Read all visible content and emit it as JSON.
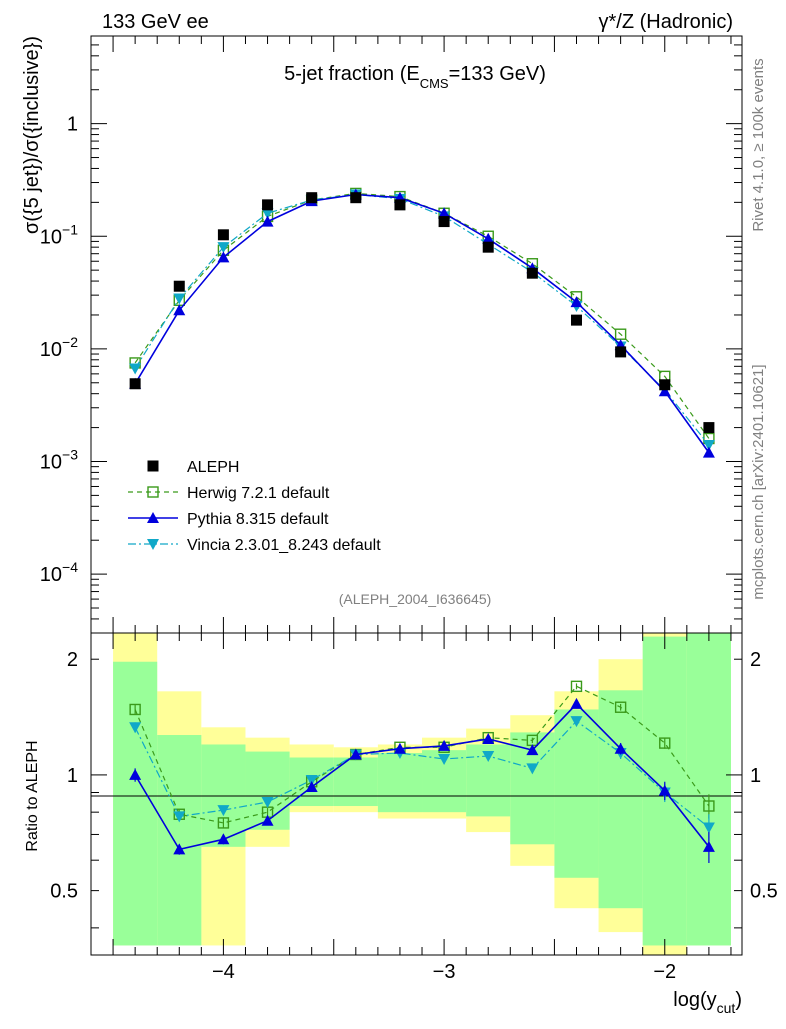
{
  "header": {
    "left": "133 GeV ee",
    "right": "γ*/Z (Hadronic)"
  },
  "side_labels": {
    "rivet": "Rivet 4.1.0, ≥ 100k events",
    "mcplots": "mcplots.cern.ch [arXiv:2401.10621]"
  },
  "chart_data": [
    {
      "type": "scatter",
      "panel": "main",
      "title_parts": {
        "prefix": "5-jet fraction (E",
        "sub": "CMS",
        "suffix": "=133 GeV)"
      },
      "ylabel": "σ({5 jet})/σ({inclusive})",
      "yscale": "log",
      "xlim": [
        -4.6,
        -1.65
      ],
      "ylim": [
        3e-05,
        6
      ],
      "ytick_labels": [
        {
          "value": 1,
          "base": "1",
          "exp": ""
        },
        {
          "value": 0.1,
          "base": "10",
          "exp": "−1"
        },
        {
          "value": 0.01,
          "base": "10",
          "exp": "−2"
        },
        {
          "value": 0.001,
          "base": "10",
          "exp": "−3"
        },
        {
          "value": 0.0001,
          "base": "10",
          "exp": "−4"
        }
      ],
      "watermark": "(ALEPH_2004_I636645)",
      "x": [
        -4.4,
        -4.2,
        -4.0,
        -3.8,
        -3.6,
        -3.4,
        -3.2,
        -3.0,
        -2.8,
        -2.6,
        -2.4,
        -2.2,
        -2.0,
        -1.8
      ],
      "series": [
        {
          "name": "ALEPH",
          "color": "#000000",
          "marker": "square-filled",
          "line": "none",
          "values": [
            0.0049,
            0.036,
            0.103,
            0.19,
            0.22,
            0.22,
            0.19,
            0.135,
            0.08,
            0.047,
            0.018,
            0.0094,
            0.0048,
            0.002
          ]
        },
        {
          "name": "Herwig 7.2.1 default",
          "color": "#3a9a1a",
          "marker": "square-open",
          "line": "dashed",
          "values": [
            0.0075,
            0.027,
            0.075,
            0.15,
            0.21,
            0.24,
            0.225,
            0.16,
            0.1,
            0.057,
            0.029,
            0.0135,
            0.0057,
            0.0016
          ]
        },
        {
          "name": "Pythia 8.315 default",
          "color": "#0000dd",
          "marker": "triangle-up-filled",
          "line": "solid",
          "values": [
            0.0049,
            0.022,
            0.065,
            0.135,
            0.205,
            0.235,
            0.22,
            0.16,
            0.095,
            0.052,
            0.026,
            0.0108,
            0.0042,
            0.0012
          ]
        },
        {
          "name": "Vincia 2.3.01_8.243 default",
          "color": "#10a8c8",
          "marker": "triangle-down-filled",
          "line": "dashdot",
          "values": [
            0.0067,
            0.028,
            0.08,
            0.16,
            0.21,
            0.235,
            0.215,
            0.15,
            0.085,
            0.048,
            0.024,
            0.0105,
            0.0043,
            0.0014
          ]
        }
      ]
    },
    {
      "type": "scatter",
      "panel": "ratio",
      "ylabel": "Ratio to ALEPH",
      "xlabel_parts": {
        "prefix": "log(y",
        "sub": "cut",
        "suffix": ")"
      },
      "ylim": [
        0.34,
        2.34
      ],
      "reference_line": 1,
      "ytick_labels": [
        {
          "value": 2,
          "text": "2"
        },
        {
          "value": 1,
          "text": "1"
        },
        {
          "value": 0.5,
          "text": "0.5"
        }
      ],
      "xtick_labels": [
        {
          "value": -4,
          "text": "−4"
        },
        {
          "value": -3,
          "text": "−3"
        },
        {
          "value": -2,
          "text": "−2"
        }
      ],
      "x": [
        -4.4,
        -4.2,
        -4.0,
        -3.8,
        -3.6,
        -3.4,
        -3.2,
        -3.0,
        -2.8,
        -2.6,
        -2.4,
        -2.2,
        -2.0,
        -1.8
      ],
      "bin_edges": [
        -4.5,
        -4.3,
        -4.1,
        -3.9,
        -3.7,
        -3.5,
        -3.3,
        -3.1,
        -2.9,
        -2.7,
        -2.5,
        -2.3,
        -2.1,
        -1.9,
        -1.7
      ],
      "uncertainty_bands": [
        {
          "name": "stat",
          "color": "#99ff99",
          "low": [
            0.36,
            0.36,
            0.65,
            0.72,
            0.83,
            0.83,
            0.8,
            0.8,
            0.78,
            0.66,
            0.54,
            0.45,
            0.36,
            0.36
          ],
          "high": [
            1.97,
            1.27,
            1.2,
            1.15,
            1.11,
            1.11,
            1.14,
            1.16,
            1.2,
            1.29,
            1.48,
            1.66,
            2.29,
            2.34
          ]
        },
        {
          "name": "total",
          "color": "#ffff99",
          "low": [
            0.36,
            0.36,
            0.36,
            0.65,
            0.8,
            0.8,
            0.77,
            0.77,
            0.71,
            0.58,
            0.45,
            0.39,
            0.34,
            0.36
          ],
          "high": [
            2.34,
            1.65,
            1.33,
            1.25,
            1.2,
            1.18,
            1.2,
            1.25,
            1.32,
            1.43,
            1.65,
            2.0,
            2.34,
            2.34
          ]
        }
      ],
      "series": [
        {
          "name": "Herwig 7.2.1 default",
          "color": "#3a9a1a",
          "marker": "square-open",
          "line": "dashed",
          "values": [
            1.48,
            0.79,
            0.75,
            0.8,
            0.96,
            1.13,
            1.18,
            1.18,
            1.25,
            1.23,
            1.7,
            1.5,
            1.21,
            0.83
          ],
          "errors": [
            0.04,
            0.02,
            0.02,
            0.02,
            0.01,
            0.01,
            0.01,
            0.01,
            0.02,
            0.02,
            0.03,
            0.03,
            0.04,
            0.06
          ]
        },
        {
          "name": "Pythia 8.315 default",
          "color": "#0000dd",
          "marker": "triangle-up-filled",
          "line": "solid",
          "values": [
            1.0,
            0.64,
            0.68,
            0.76,
            0.93,
            1.13,
            1.17,
            1.19,
            1.24,
            1.16,
            1.53,
            1.17,
            0.91,
            0.65
          ],
          "errors": [
            0.04,
            0.02,
            0.02,
            0.02,
            0.01,
            0.01,
            0.01,
            0.01,
            0.02,
            0.02,
            0.03,
            0.04,
            0.05,
            0.06
          ]
        },
        {
          "name": "Vincia 2.3.01_8.243 default",
          "color": "#10a8c8",
          "marker": "triangle-down-filled",
          "line": "dashdot",
          "values": [
            1.33,
            0.78,
            0.81,
            0.85,
            0.97,
            1.13,
            1.14,
            1.1,
            1.12,
            1.04,
            1.38,
            1.14,
            0.9,
            0.73
          ],
          "errors": [
            0.04,
            0.02,
            0.02,
            0.02,
            0.01,
            0.01,
            0.01,
            0.01,
            0.02,
            0.02,
            0.03,
            0.04,
            0.05,
            0.06
          ]
        }
      ]
    }
  ]
}
